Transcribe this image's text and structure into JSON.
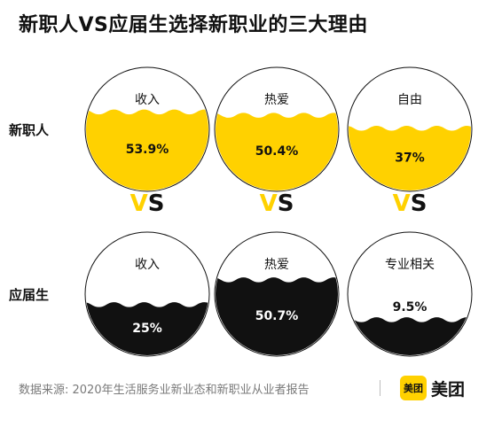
{
  "title": "新职人VS应届生选择新职业的三大理由",
  "colors": {
    "new_worker": "#ffd100",
    "graduate": "#111111",
    "vs_accent": "#ffd100",
    "vs_dark": "#111111"
  },
  "vs_label": "VS",
  "chart_data": {
    "type": "liquid-fill",
    "title": "新职人VS应届生选择新职业的三大理由",
    "groups": [
      {
        "name": "新职人",
        "items": [
          {
            "label": "收入",
            "value": 53.9,
            "display": "53.9%"
          },
          {
            "label": "热爱",
            "value": 50.4,
            "display": "50.4%"
          },
          {
            "label": "自由",
            "value": 37,
            "display": "37%"
          }
        ]
      },
      {
        "name": "应届生",
        "items": [
          {
            "label": "收入",
            "value": 25,
            "display": "25%"
          },
          {
            "label": "热爱",
            "value": 50.7,
            "display": "50.7%"
          },
          {
            "label": "专业相关",
            "value": 9.5,
            "display": "9.5%"
          }
        ]
      }
    ]
  },
  "footer": {
    "source": "数据来源: 2020年生活服务业新业态和新职业从业者报告",
    "brand_badge": "美团",
    "brand_text": "美团"
  }
}
